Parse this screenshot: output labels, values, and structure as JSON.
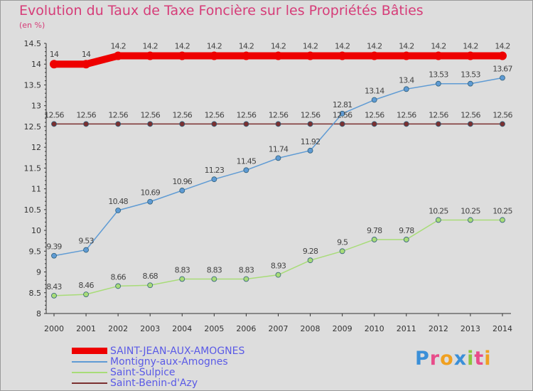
{
  "chart_data": {
    "type": "line",
    "title": "Evolution du Taux de Taxe Foncière sur les Propriétés Bâties",
    "unit": "(en %)",
    "x": [
      "2000",
      "2001",
      "2002",
      "2003",
      "2004",
      "2005",
      "2006",
      "2007",
      "2008",
      "2009",
      "2010",
      "2011",
      "2012",
      "2013",
      "2014"
    ],
    "ylim": [
      8,
      14.5
    ],
    "yticks": [
      "8",
      "8.5",
      "9",
      "9.5",
      "10",
      "10.5",
      "11",
      "11.5",
      "12",
      "12.5",
      "13",
      "13.5",
      "14",
      "14.5"
    ],
    "grid": false,
    "legend_position": "bottom-left",
    "series": [
      {
        "name": "SAINT-JEAN-AUX-AMOGNES",
        "color": "#ee0000",
        "values": [
          14,
          14,
          14.2,
          14.2,
          14.2,
          14.2,
          14.2,
          14.2,
          14.2,
          14.2,
          14.2,
          14.2,
          14.2,
          14.2,
          14.2
        ],
        "labels": [
          "14",
          "14",
          "14.2",
          "14.2",
          "14.2",
          "14.2",
          "14.2",
          "14.2",
          "14.2",
          "14.2",
          "14.2",
          "14.2",
          "14.2",
          "14.2",
          "14.2"
        ]
      },
      {
        "name": "Montigny-aux-Amognes",
        "color": "#5f9bd4",
        "values": [
          9.39,
          9.53,
          10.48,
          10.69,
          10.96,
          11.23,
          11.45,
          11.74,
          11.92,
          12.81,
          13.14,
          13.4,
          13.53,
          13.53,
          13.67
        ],
        "labels": [
          "9.39",
          "9.53",
          "10.48",
          "10.69",
          "10.96",
          "11.23",
          "11.45",
          "11.74",
          "11.92",
          "12.81",
          "13.14",
          "13.4",
          "13.53",
          "13.53",
          "13.67"
        ]
      },
      {
        "name": "Saint-Sulpice",
        "color": "#a8dc78",
        "values": [
          8.43,
          8.46,
          8.66,
          8.68,
          8.83,
          8.83,
          8.83,
          8.93,
          9.28,
          9.5,
          9.78,
          9.78,
          10.25,
          10.25,
          10.25
        ],
        "labels": [
          "8.43",
          "8.46",
          "8.66",
          "8.68",
          "8.83",
          "8.83",
          "8.83",
          "8.93",
          "9.28",
          "9.5",
          "9.78",
          "9.78",
          "10.25",
          "10.25",
          "10.25"
        ]
      },
      {
        "name": "Saint-Benin-d'Azy",
        "color": "#7b3030",
        "values": [
          12.56,
          12.56,
          12.56,
          12.56,
          12.56,
          12.56,
          12.56,
          12.56,
          12.56,
          12.56,
          12.56,
          12.56,
          12.56,
          12.56,
          12.56
        ],
        "labels": [
          "12.56",
          "12.56",
          "12.56",
          "12.56",
          "12.56",
          "12.56",
          "12.56",
          "12.56",
          "12.56",
          "12.56",
          "12.56",
          "12.56",
          "12.56",
          "12.56",
          "12.56"
        ]
      }
    ]
  },
  "logo": {
    "text": "Proxiti",
    "letter_colors": [
      "#3a8fd8",
      "#e84c8a",
      "#f0a020",
      "#3a8fd8",
      "#8cc63e",
      "#e84c8a",
      "#f0a020"
    ]
  }
}
